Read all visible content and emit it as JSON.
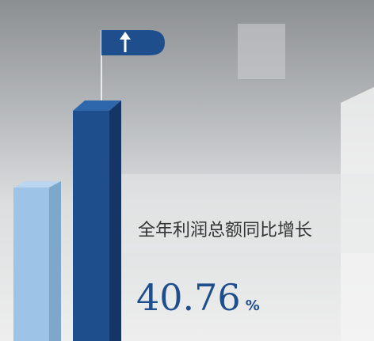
{
  "headline": "全年利润总额同比增长",
  "stat": {
    "value": 40.76,
    "unit": "%"
  }
}
